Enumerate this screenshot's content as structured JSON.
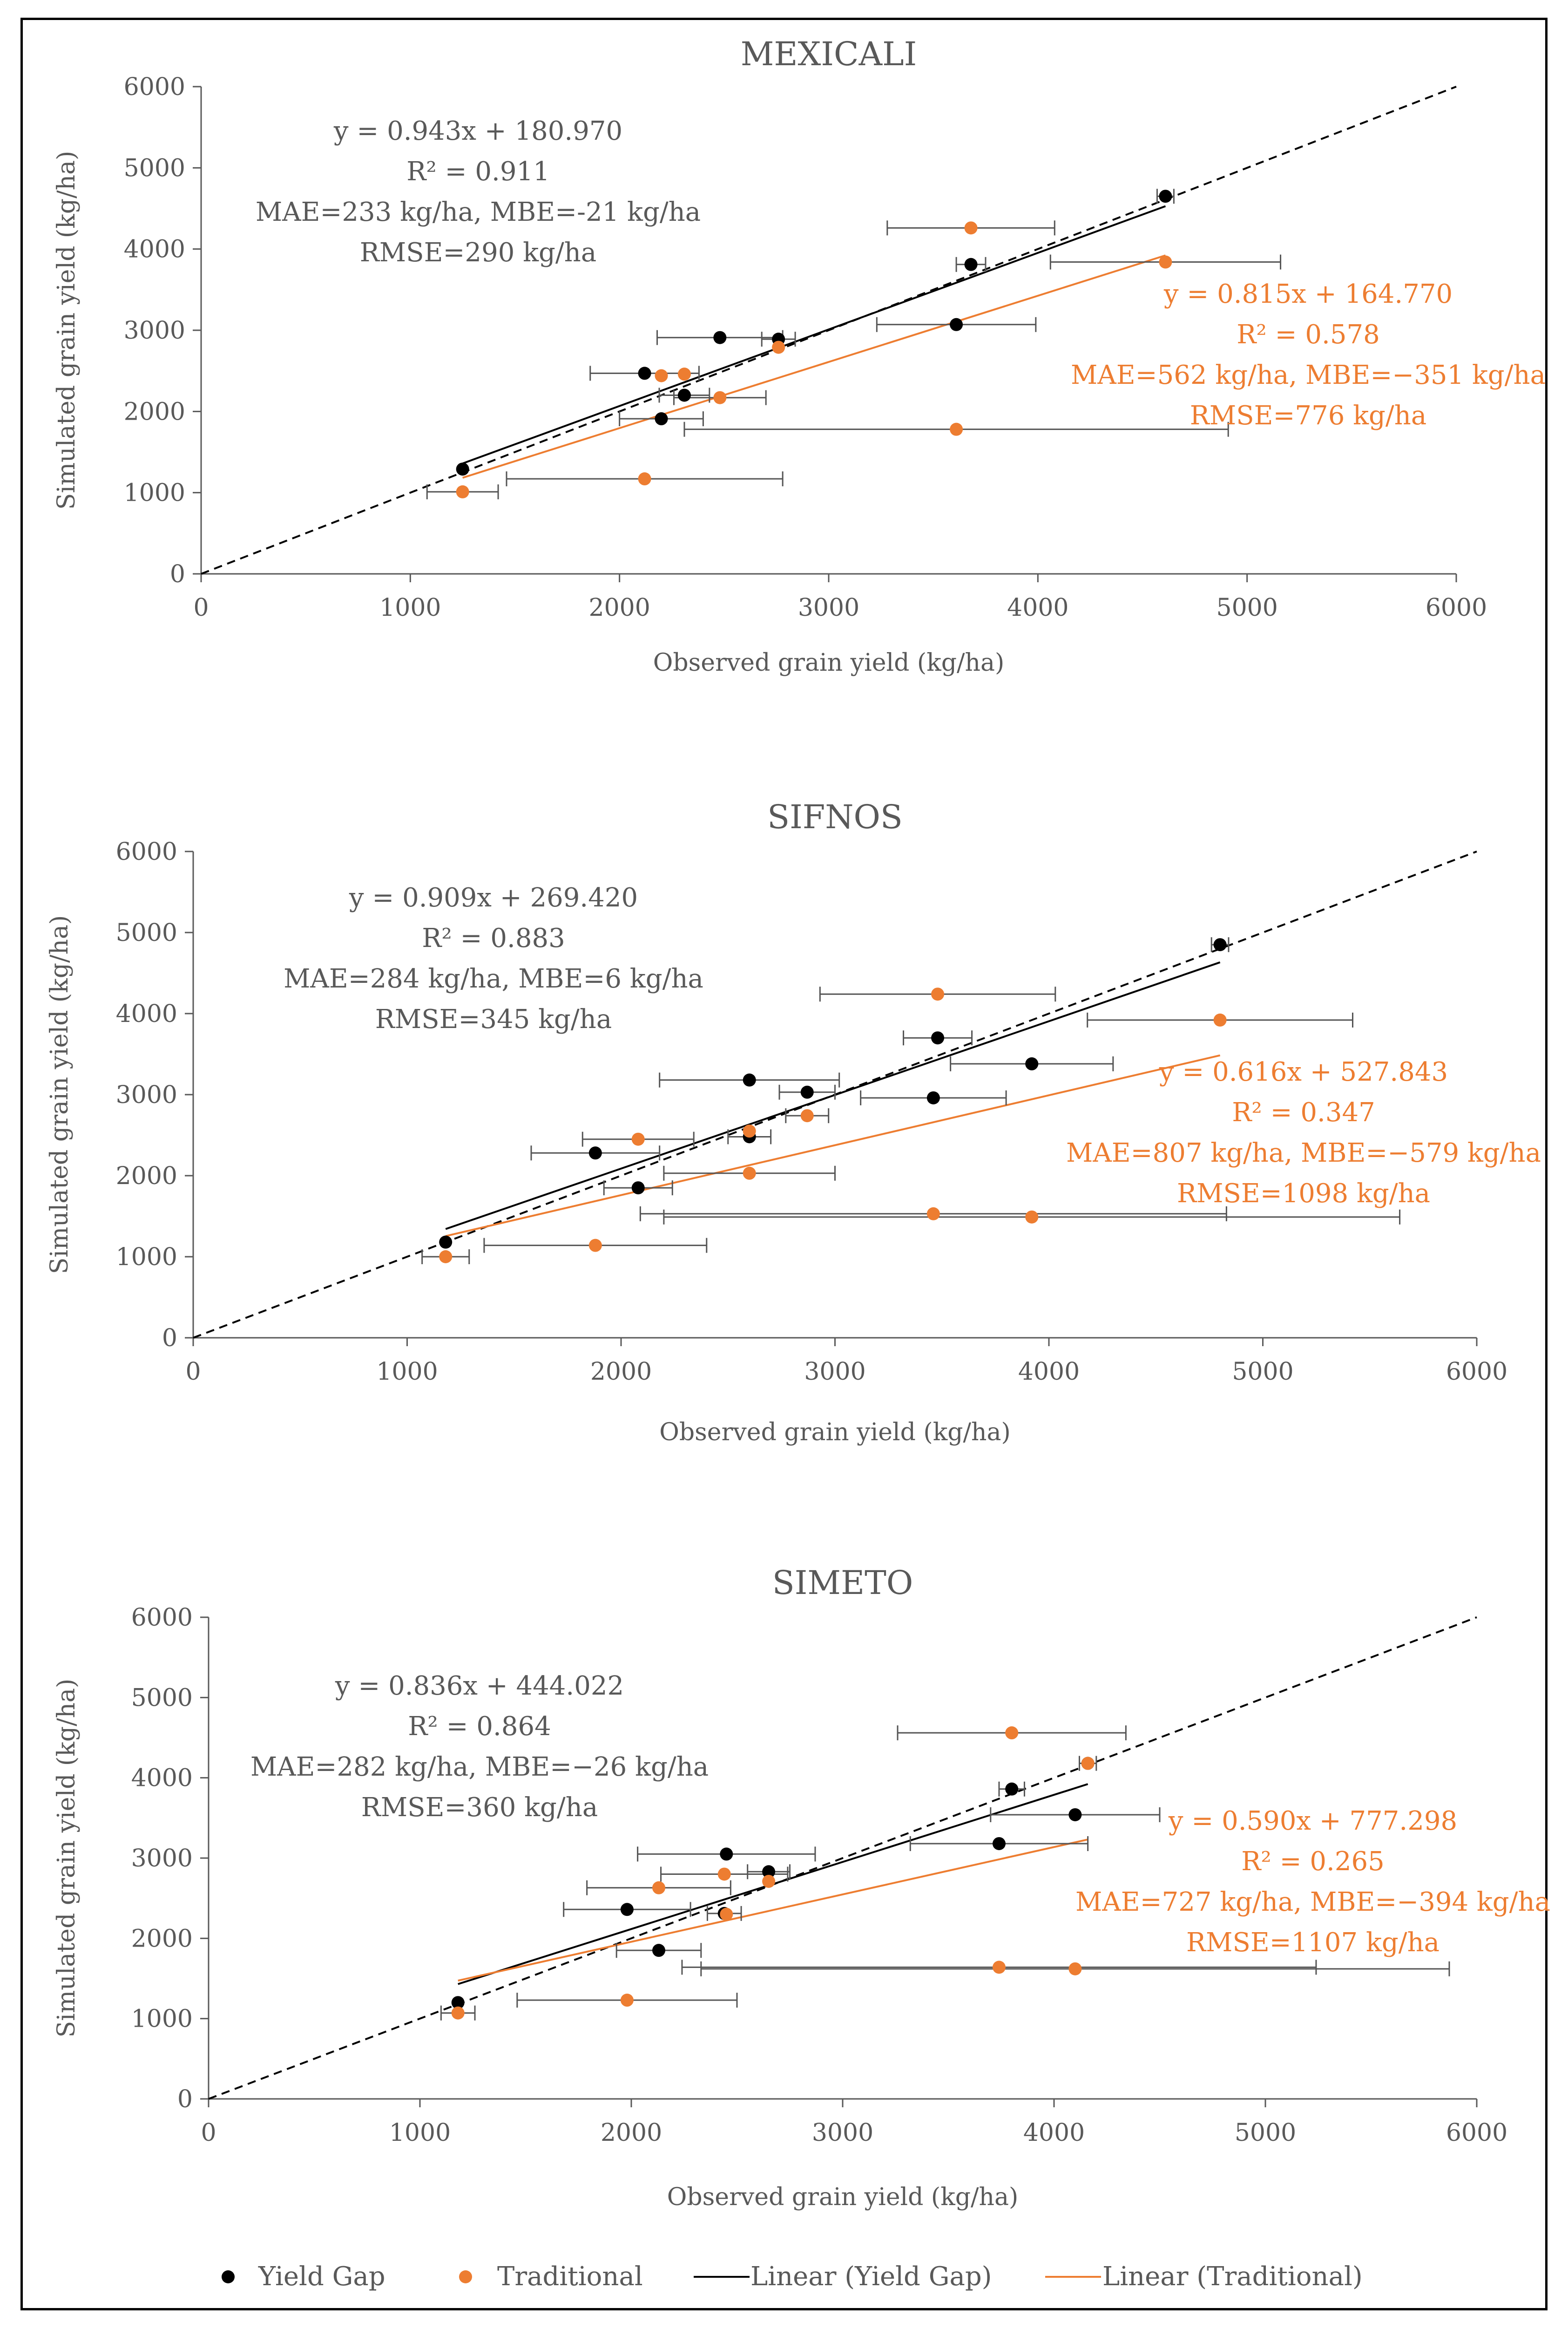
{
  "legend": {
    "yield_gap": "Yield Gap",
    "traditional": "Traditional",
    "linear_yield_gap": "Linear (Yield Gap)",
    "linear_traditional": "Linear (Traditional)"
  },
  "colors": {
    "yield_gap": "#000000",
    "traditional": "#ED7D31",
    "axis": "#555555",
    "text": "#595959"
  },
  "chart_data": [
    {
      "type": "scatter",
      "title": "MEXICALI",
      "xlabel": "Observed grain yield (kg/ha)",
      "ylabel": "Simulated grain yield (kg/ha)",
      "xlim": [
        0,
        6000
      ],
      "ylim": [
        0,
        6000
      ],
      "xticks": [
        "0",
        "1000",
        "2000",
        "3000",
        "4000",
        "5000",
        "6000"
      ],
      "yticks": [
        "0",
        "1000",
        "2000",
        "3000",
        "4000",
        "5000",
        "6000"
      ],
      "series": [
        {
          "name": "Yield Gap",
          "x": [
            1250,
            2200,
            2310,
            2120,
            2480,
            2760,
            3610,
            3680,
            4610
          ],
          "y": [
            1290,
            1910,
            2200,
            2470,
            2910,
            2890,
            3070,
            3810,
            4650
          ],
          "xerr": [
            0,
            200,
            120,
            260,
            300,
            80,
            380,
            70,
            40
          ]
        },
        {
          "name": "Traditional",
          "x": [
            1250,
            2120,
            2480,
            2200,
            2310,
            2760,
            3610,
            3680,
            4610
          ],
          "y": [
            1010,
            1170,
            2170,
            2440,
            2460,
            2790,
            1780,
            4260,
            3840
          ],
          "xerr": [
            170,
            660,
            220,
            0,
            0,
            0,
            1300,
            400,
            550
          ]
        }
      ],
      "fits": {
        "yield_gap": {
          "slope": 0.943,
          "intercept": 180.97,
          "x_range": [
            1250,
            4610
          ]
        },
        "traditional": {
          "slope": 0.815,
          "intercept": 164.77,
          "x_range": [
            1250,
            4610
          ]
        }
      },
      "annotations": {
        "yield_gap": [
          "y = 0.943x + 180.970",
          "R² = 0.911",
          "MAE=233 kg/ha, MBE=-21 kg/ha",
          "RMSE=290 kg/ha"
        ],
        "traditional": [
          "y = 0.815x + 164.770",
          "R² = 0.578",
          "MAE=562 kg/ha, MBE=−351 kg/ha",
          "RMSE=776 kg/ha"
        ]
      }
    },
    {
      "type": "scatter",
      "title": "SIFNOS",
      "xlabel": "Observed grain yield (kg/ha)",
      "ylabel": "Simulated grain yield (kg/ha)",
      "xlim": [
        0,
        6000
      ],
      "ylim": [
        0,
        6000
      ],
      "xticks": [
        "0",
        "1000",
        "2000",
        "3000",
        "4000",
        "5000",
        "6000"
      ],
      "yticks": [
        "0",
        "1000",
        "2000",
        "3000",
        "4000",
        "5000",
        "6000"
      ],
      "series": [
        {
          "name": "Yield Gap",
          "x": [
            1180,
            2080,
            1880,
            2600,
            2600,
            2870,
            3460,
            3480,
            3920,
            4800
          ],
          "y": [
            1180,
            1850,
            2280,
            2480,
            3180,
            3030,
            2960,
            3700,
            3380,
            4850
          ],
          "xerr": [
            0,
            160,
            300,
            100,
            420,
            130,
            340,
            160,
            380,
            40
          ]
        },
        {
          "name": "Traditional",
          "x": [
            1180,
            1880,
            2600,
            2080,
            2870,
            3460,
            3920,
            3480,
            4800,
            2600
          ],
          "y": [
            1000,
            1140,
            2030,
            2450,
            2740,
            1530,
            1490,
            4240,
            3920,
            2550
          ],
          "xerr": [
            110,
            520,
            400,
            260,
            100,
            1370,
            1720,
            550,
            620,
            0
          ]
        }
      ],
      "fits": {
        "yield_gap": {
          "slope": 0.909,
          "intercept": 269.42,
          "x_range": [
            1180,
            4800
          ]
        },
        "traditional": {
          "slope": 0.616,
          "intercept": 527.843,
          "x_range": [
            1180,
            4800
          ]
        }
      },
      "annotations": {
        "yield_gap": [
          "y = 0.909x + 269.420",
          "R² = 0.883",
          "MAE=284 kg/ha, MBE=6 kg/ha",
          "RMSE=345 kg/ha"
        ],
        "traditional": [
          "y = 0.616x + 527.843",
          "R² = 0.347",
          "MAE=807 kg/ha, MBE=−579 kg/ha",
          "RMSE=1098 kg/ha"
        ]
      }
    },
    {
      "type": "scatter",
      "title": "SIMETO",
      "xlabel": "Observed grain yield (kg/ha)",
      "ylabel": "Simulated grain yield (kg/ha)",
      "xlim": [
        0,
        6000
      ],
      "ylim": [
        0,
        6000
      ],
      "xticks": [
        "0",
        "1000",
        "2000",
        "3000",
        "4000",
        "5000",
        "6000"
      ],
      "yticks": [
        "0",
        "1000",
        "2000",
        "3000",
        "4000",
        "5000",
        "6000"
      ],
      "series": [
        {
          "name": "Yield Gap",
          "x": [
            1180,
            2130,
            1980,
            2450,
            2650,
            2440,
            3740,
            3800,
            4100,
            4160
          ],
          "y": [
            1200,
            1850,
            2360,
            3050,
            2830,
            2310,
            3180,
            3860,
            3540,
            4180
          ],
          "xerr": [
            0,
            200,
            300,
            420,
            100,
            80,
            420,
            60,
            400,
            40
          ]
        },
        {
          "name": "Traditional",
          "x": [
            1180,
            1980,
            2130,
            2440,
            2650,
            2450,
            3740,
            4100,
            3800,
            4160
          ],
          "y": [
            1070,
            1230,
            2630,
            2800,
            2710,
            2300,
            1640,
            1620,
            4560,
            4180
          ],
          "xerr": [
            80,
            520,
            340,
            300,
            0,
            0,
            1500,
            1770,
            540,
            0
          ]
        }
      ],
      "fits": {
        "yield_gap": {
          "slope": 0.836,
          "intercept": 444.022,
          "x_range": [
            1180,
            4160
          ]
        },
        "traditional": {
          "slope": 0.59,
          "intercept": 777.298,
          "x_range": [
            1180,
            4160
          ]
        }
      },
      "annotations": {
        "yield_gap": [
          "y = 0.836x + 444.022",
          "R² = 0.864",
          "MAE=282 kg/ha, MBE=−26 kg/ha",
          "RMSE=360 kg/ha"
        ],
        "traditional": [
          "y = 0.590x + 777.298",
          "R² = 0.265",
          "MAE=727 kg/ha, MBE=−394 kg/ha",
          "RMSE=1107 kg/ha"
        ]
      }
    }
  ]
}
